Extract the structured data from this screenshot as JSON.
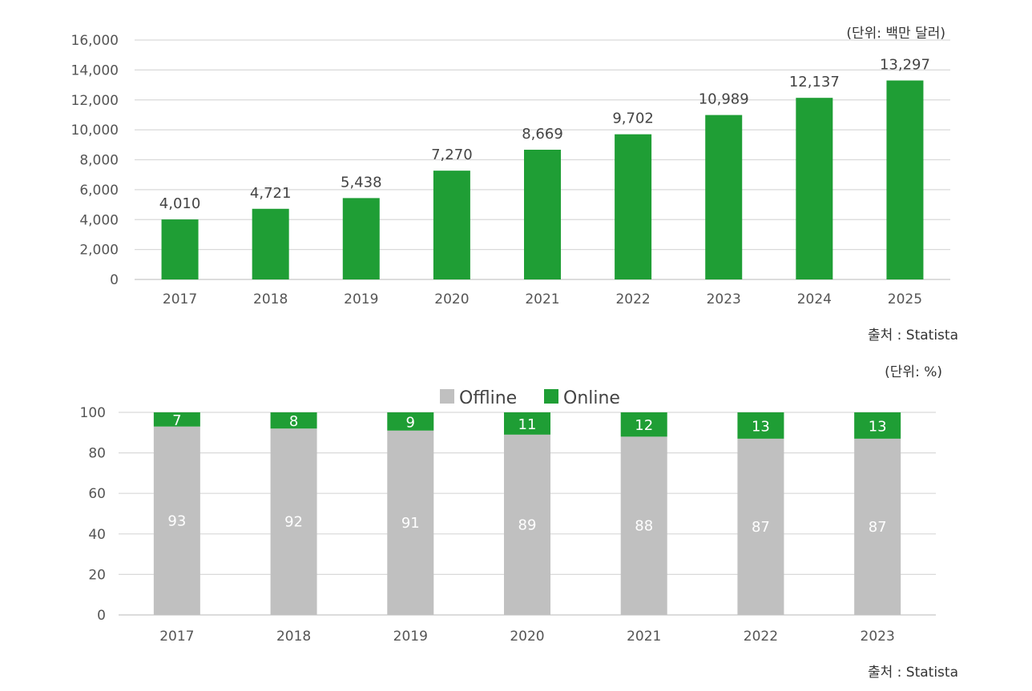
{
  "colors": {
    "green": "#1f9e35",
    "gray": "#c0c0c0",
    "grid": "#d9d9d9"
  },
  "chart_data": [
    {
      "type": "bar",
      "title": "",
      "unit_note": "(단위: 백만 달러)",
      "source": "출처 : Statista",
      "categories": [
        "2017",
        "2018",
        "2019",
        "2020",
        "2021",
        "2022",
        "2023",
        "2024",
        "2025"
      ],
      "values": [
        4010,
        4721,
        5438,
        7270,
        8669,
        9702,
        10989,
        12137,
        13297
      ],
      "value_labels": [
        "4,010",
        "4,721",
        "5,438",
        "7,270",
        "8,669",
        "9,702",
        "10,989",
        "12,137",
        "13,297"
      ],
      "ylim": [
        0,
        16000
      ],
      "yticks": [
        0,
        2000,
        4000,
        6000,
        8000,
        10000,
        12000,
        14000,
        16000
      ],
      "ytick_labels": [
        "0",
        "2,000",
        "4,000",
        "6,000",
        "8,000",
        "10,000",
        "12,000",
        "14,000",
        "16,000"
      ],
      "grid": true
    },
    {
      "type": "bar",
      "stacked": true,
      "unit_note": "(단위: %)",
      "source": "출처 : Statista",
      "categories": [
        "2017",
        "2018",
        "2019",
        "2020",
        "2021",
        "2022",
        "2023"
      ],
      "series": [
        {
          "name": "Offline",
          "values": [
            93,
            92,
            91,
            89,
            88,
            87,
            87
          ]
        },
        {
          "name": "Online",
          "values": [
            7,
            8,
            9,
            11,
            12,
            13,
            13
          ]
        }
      ],
      "ylim": [
        0,
        100
      ],
      "yticks": [
        0,
        20,
        40,
        60,
        80,
        100
      ],
      "ytick_labels": [
        "0",
        "20",
        "40",
        "60",
        "80",
        "100"
      ],
      "legend": "top-center",
      "grid": true
    }
  ]
}
